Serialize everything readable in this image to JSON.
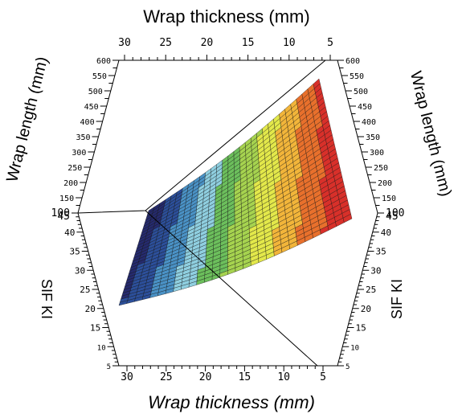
{
  "chart_data": {
    "type": "surface3d",
    "title": "",
    "x_axis": {
      "label": "Wrap thickness  (mm)",
      "range": [
        5,
        30
      ],
      "ticks": [
        5,
        10,
        15,
        20,
        25,
        30
      ],
      "reversed": true
    },
    "y_axis": {
      "label": "Wrap length (mm)",
      "range": [
        100,
        600
      ],
      "ticks": [
        100,
        150,
        200,
        250,
        300,
        350,
        400,
        450,
        500,
        550,
        600
      ]
    },
    "z_axis": {
      "label": "SIF KI",
      "range": [
        5,
        45
      ],
      "ticks": [
        5,
        10,
        15,
        20,
        25,
        30,
        35,
        40,
        45
      ]
    },
    "corners": [
      {
        "thickness": 30,
        "length": 100,
        "sif": 24
      },
      {
        "thickness": 30,
        "length": 600,
        "sif": 45
      },
      {
        "thickness": 5,
        "length": 100,
        "sif": 40
      },
      {
        "thickness": 5,
        "length": 600,
        "sif": 62
      }
    ],
    "colormap": [
      "#252a6e",
      "#2c4f9a",
      "#4a92c6",
      "#8fcfe0",
      "#6cbf5c",
      "#a6d34f",
      "#e3e84a",
      "#f2b53a",
      "#e8702c",
      "#d8302a"
    ],
    "grid": false,
    "legend": "none"
  }
}
